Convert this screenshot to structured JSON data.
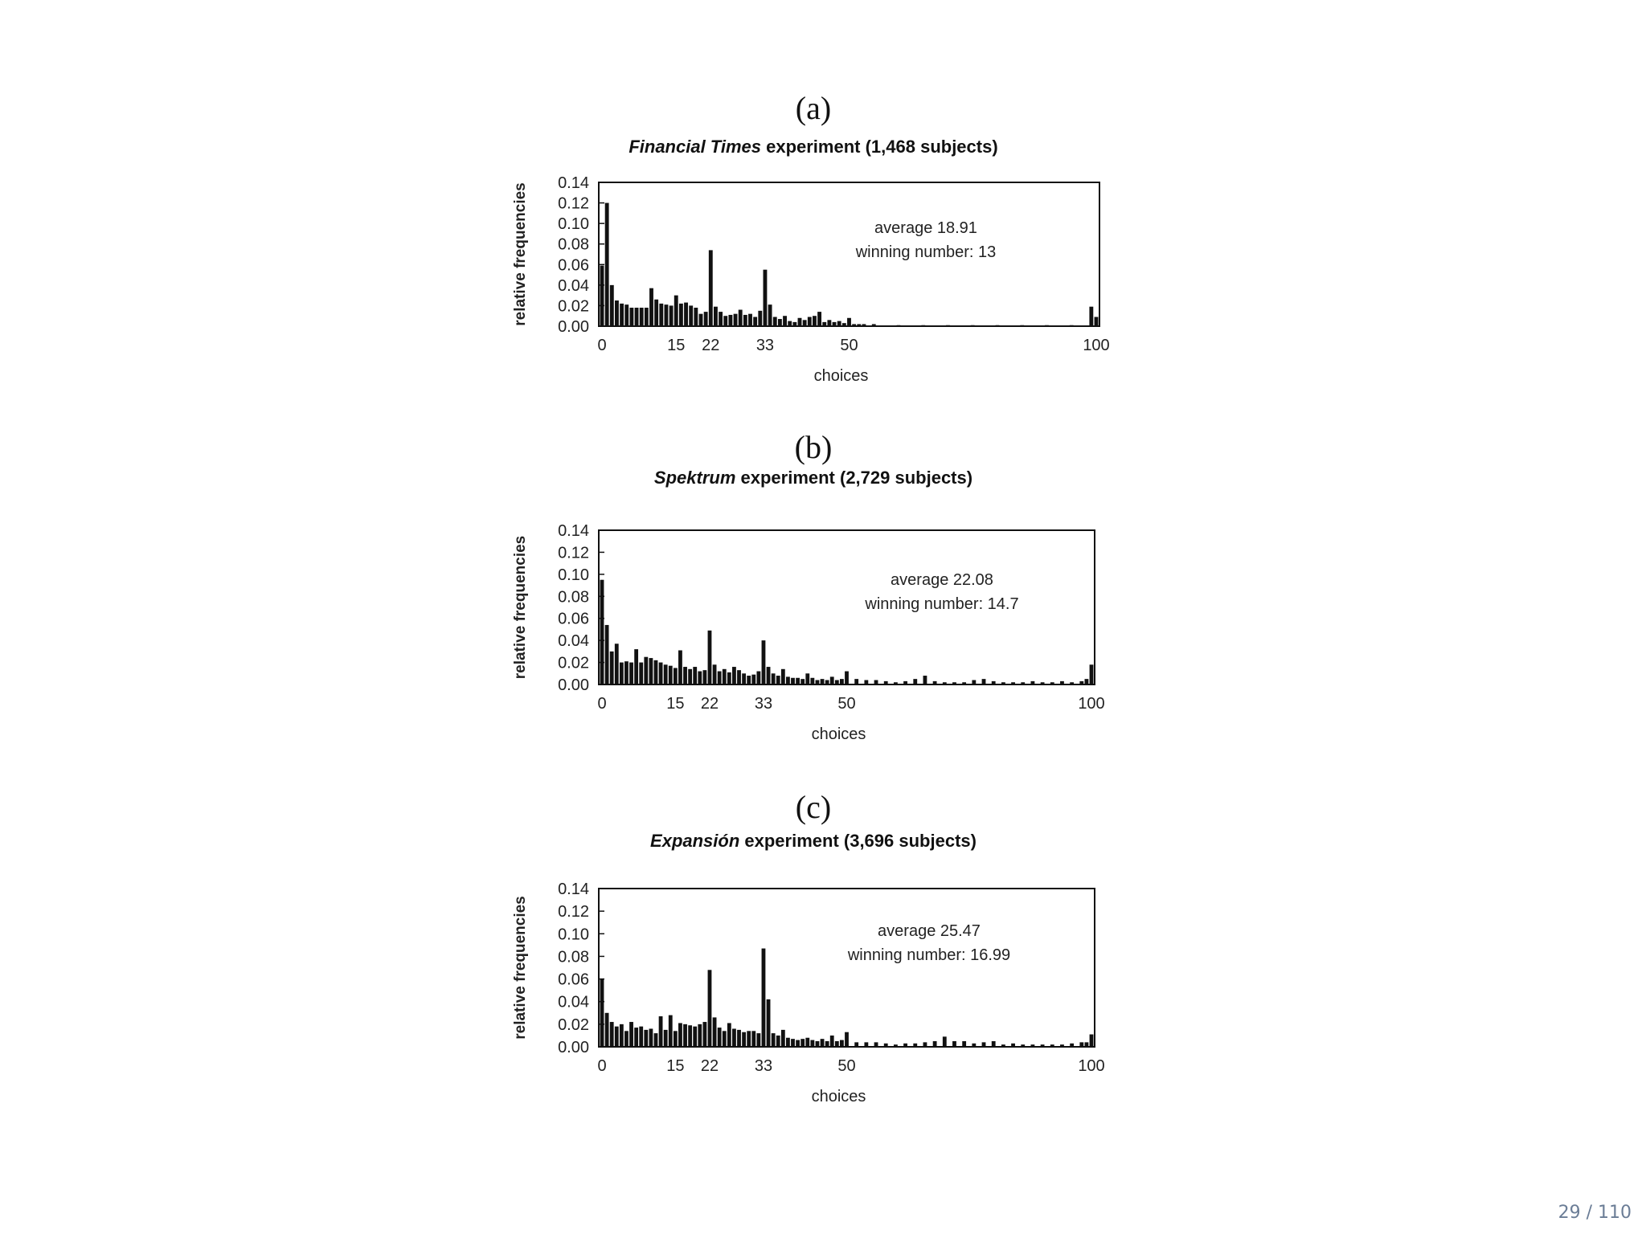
{
  "page_number": "29 / 110",
  "chart_data": [
    {
      "type": "bar",
      "panel_label": "(a)",
      "title_italic": "Financial Times",
      "title_rest": " experiment (1,468 subjects)",
      "xlabel": "choices",
      "ylabel": "relative frequencies",
      "xlim": [
        0,
        100
      ],
      "ylim": [
        0,
        0.14
      ],
      "xticks": [
        0,
        15,
        22,
        33,
        50,
        100
      ],
      "yticks": [
        "0.14",
        "0.12",
        "0.10",
        "0.08",
        "0.06",
        "0.04",
        "0.02",
        "0.00"
      ],
      "annotation_average": "average 18.91",
      "annotation_winning": "winning number: 13",
      "x": [
        0,
        1,
        2,
        3,
        4,
        5,
        6,
        7,
        8,
        9,
        10,
        11,
        12,
        13,
        14,
        15,
        16,
        17,
        18,
        19,
        20,
        21,
        22,
        23,
        24,
        25,
        26,
        27,
        28,
        29,
        30,
        31,
        32,
        33,
        34,
        35,
        36,
        37,
        38,
        39,
        40,
        41,
        42,
        43,
        44,
        45,
        46,
        47,
        48,
        49,
        50,
        51,
        52,
        53,
        55,
        60,
        65,
        70,
        75,
        80,
        85,
        90,
        95,
        99,
        100
      ],
      "values": [
        0.059,
        0.12,
        0.04,
        0.025,
        0.022,
        0.021,
        0.018,
        0.018,
        0.018,
        0.018,
        0.037,
        0.026,
        0.022,
        0.021,
        0.02,
        0.03,
        0.022,
        0.023,
        0.02,
        0.018,
        0.012,
        0.014,
        0.074,
        0.019,
        0.014,
        0.01,
        0.011,
        0.012,
        0.016,
        0.011,
        0.012,
        0.009,
        0.015,
        0.055,
        0.021,
        0.009,
        0.007,
        0.01,
        0.005,
        0.004,
        0.008,
        0.006,
        0.009,
        0.01,
        0.014,
        0.004,
        0.006,
        0.004,
        0.005,
        0.003,
        0.008,
        0.002,
        0.002,
        0.002,
        0.002,
        0.001,
        0.001,
        0.001,
        0.001,
        0.001,
        0.001,
        0.001,
        0.001,
        0.019,
        0.009
      ]
    },
    {
      "type": "bar",
      "panel_label": "(b)",
      "title_italic": "Spektrum",
      "title_rest": " experiment (2,729 subjects)",
      "xlabel": "choices",
      "ylabel": "relative frequencies",
      "xlim": [
        0,
        100
      ],
      "ylim": [
        0,
        0.14
      ],
      "xticks": [
        0,
        15,
        22,
        33,
        50,
        100
      ],
      "yticks": [
        "0.14",
        "0.12",
        "0.10",
        "0.08",
        "0.06",
        "0.04",
        "0.02",
        "0.00"
      ],
      "annotation_average": "average 22.08",
      "annotation_winning": "winning number: 14.7",
      "x": [
        0,
        1,
        2,
        3,
        4,
        5,
        6,
        7,
        8,
        9,
        10,
        11,
        12,
        13,
        14,
        15,
        16,
        17,
        18,
        19,
        20,
        21,
        22,
        23,
        24,
        25,
        26,
        27,
        28,
        29,
        30,
        31,
        32,
        33,
        34,
        35,
        36,
        37,
        38,
        39,
        40,
        41,
        42,
        43,
        44,
        45,
        46,
        47,
        48,
        49,
        50,
        52,
        54,
        56,
        58,
        60,
        62,
        64,
        66,
        68,
        70,
        72,
        74,
        76,
        78,
        80,
        82,
        84,
        86,
        88,
        90,
        92,
        94,
        96,
        98,
        99,
        100
      ],
      "values": [
        0.095,
        0.054,
        0.03,
        0.037,
        0.02,
        0.021,
        0.02,
        0.032,
        0.02,
        0.025,
        0.024,
        0.022,
        0.02,
        0.018,
        0.017,
        0.015,
        0.031,
        0.016,
        0.014,
        0.016,
        0.012,
        0.013,
        0.049,
        0.018,
        0.012,
        0.014,
        0.011,
        0.016,
        0.013,
        0.01,
        0.008,
        0.009,
        0.012,
        0.04,
        0.016,
        0.01,
        0.008,
        0.014,
        0.007,
        0.006,
        0.006,
        0.005,
        0.01,
        0.006,
        0.004,
        0.005,
        0.004,
        0.007,
        0.004,
        0.005,
        0.012,
        0.005,
        0.004,
        0.004,
        0.003,
        0.002,
        0.003,
        0.005,
        0.008,
        0.003,
        0.002,
        0.002,
        0.002,
        0.004,
        0.005,
        0.003,
        0.002,
        0.002,
        0.002,
        0.003,
        0.002,
        0.002,
        0.003,
        0.002,
        0.003,
        0.005,
        0.018
      ]
    },
    {
      "type": "bar",
      "panel_label": "(c)",
      "title_italic": "Expansión",
      "title_rest": " experiment (3,696 subjects)",
      "xlabel": "choices",
      "ylabel": "relative frequencies",
      "xlim": [
        0,
        100
      ],
      "ylim": [
        0,
        0.14
      ],
      "xticks": [
        0,
        15,
        22,
        33,
        50,
        100
      ],
      "yticks": [
        "0.14",
        "0.12",
        "0.10",
        "0.08",
        "0.06",
        "0.04",
        "0.02",
        "0.00"
      ],
      "annotation_average": "average 25.47",
      "annotation_winning": "winning number: 16.99",
      "x": [
        0,
        1,
        2,
        3,
        4,
        5,
        6,
        7,
        8,
        9,
        10,
        11,
        12,
        13,
        14,
        15,
        16,
        17,
        18,
        19,
        20,
        21,
        22,
        23,
        24,
        25,
        26,
        27,
        28,
        29,
        30,
        31,
        32,
        33,
        34,
        35,
        36,
        37,
        38,
        39,
        40,
        41,
        42,
        43,
        44,
        45,
        46,
        47,
        48,
        49,
        50,
        52,
        54,
        56,
        58,
        60,
        62,
        64,
        66,
        68,
        70,
        72,
        74,
        76,
        78,
        80,
        82,
        84,
        86,
        88,
        90,
        92,
        94,
        96,
        98,
        99,
        100
      ],
      "values": [
        0.06,
        0.03,
        0.022,
        0.018,
        0.02,
        0.014,
        0.022,
        0.017,
        0.018,
        0.015,
        0.016,
        0.012,
        0.027,
        0.015,
        0.028,
        0.014,
        0.021,
        0.02,
        0.019,
        0.018,
        0.02,
        0.022,
        0.068,
        0.026,
        0.017,
        0.014,
        0.021,
        0.016,
        0.015,
        0.013,
        0.014,
        0.014,
        0.012,
        0.087,
        0.042,
        0.012,
        0.01,
        0.015,
        0.008,
        0.007,
        0.006,
        0.007,
        0.008,
        0.006,
        0.005,
        0.007,
        0.005,
        0.01,
        0.005,
        0.006,
        0.013,
        0.004,
        0.004,
        0.004,
        0.003,
        0.002,
        0.003,
        0.003,
        0.004,
        0.005,
        0.009,
        0.005,
        0.005,
        0.003,
        0.004,
        0.005,
        0.002,
        0.003,
        0.002,
        0.002,
        0.002,
        0.002,
        0.002,
        0.003,
        0.004,
        0.004,
        0.011
      ]
    }
  ]
}
